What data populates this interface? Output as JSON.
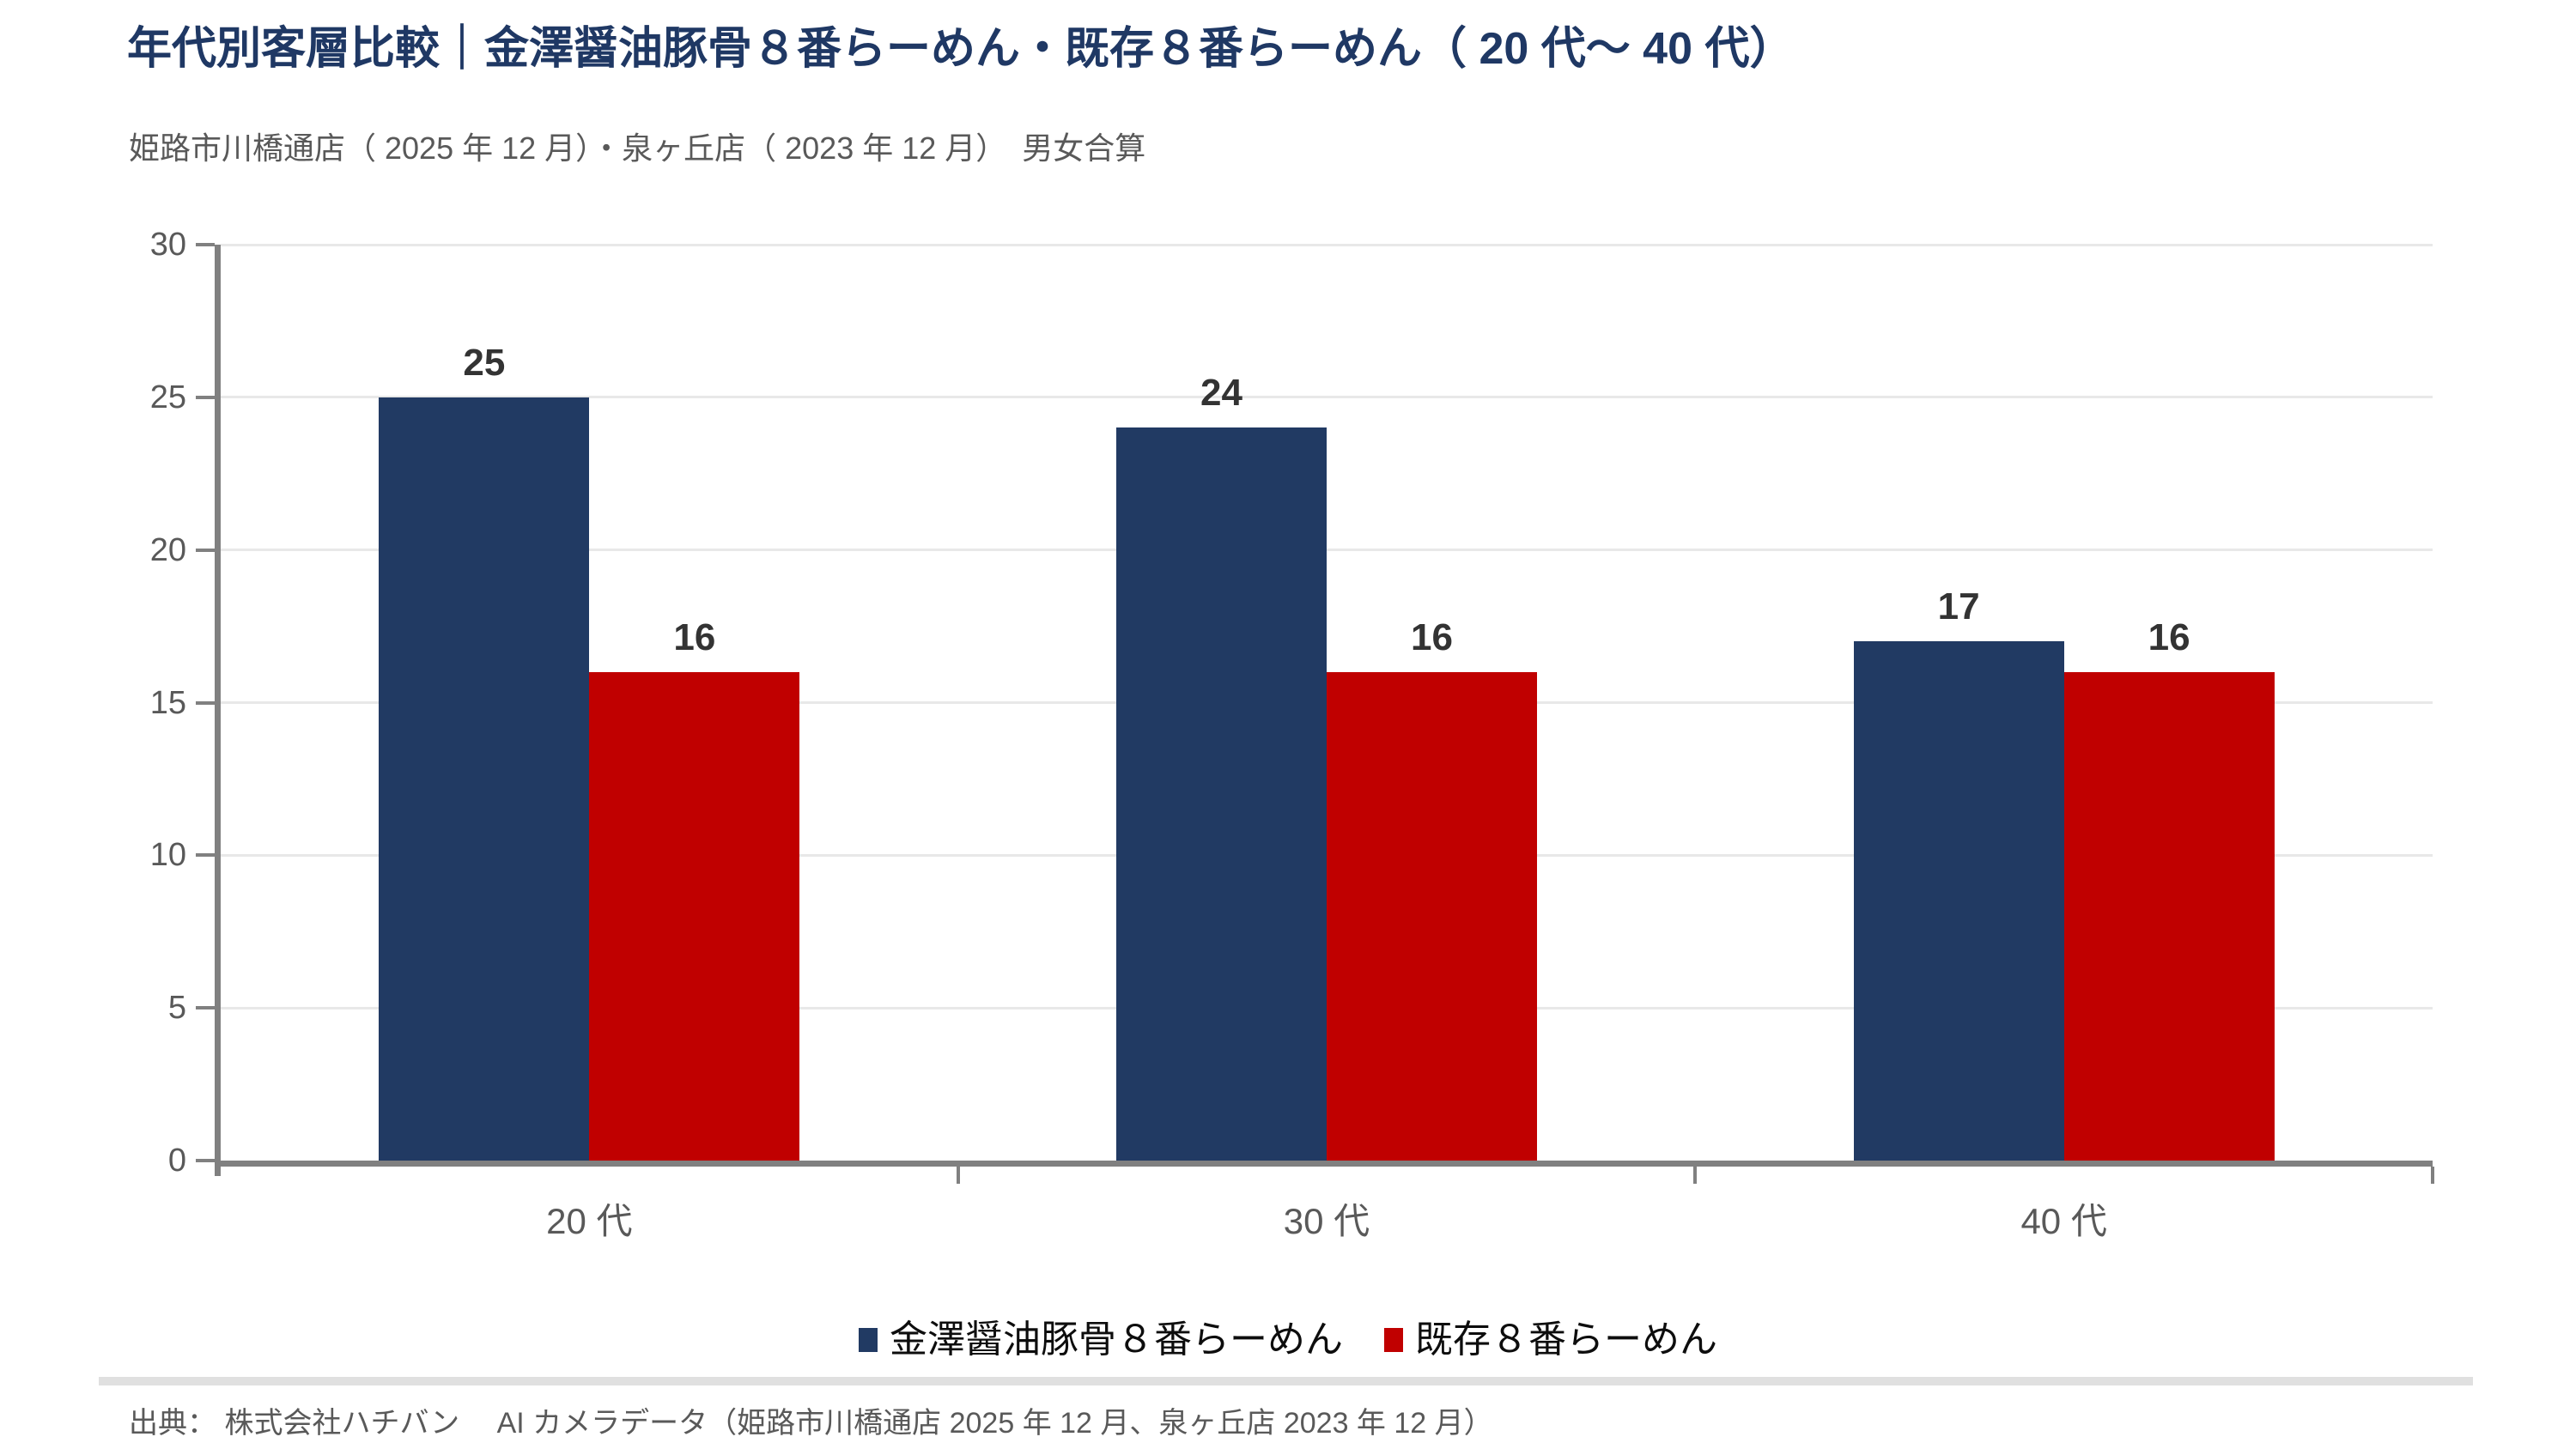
{
  "page": {
    "title": "年代別客層比較｜金澤醤油豚骨８番らーめん・既存８番らーめん（ 20 代〜 40 代）",
    "subtitle": "姫路市川橋通店（ 2025 年 12 月）・泉ヶ丘店（ 2023 年 12 月）　男女合算",
    "source": "出典： 株式会社ハチバン　 AI カメラデータ（姫路市川橋通店 2025 年 12 月、泉ヶ丘店 2023 年 12 月）"
  },
  "colors": {
    "title": "#1F3864",
    "series1": "#213A63",
    "series2": "#C00000",
    "axis": "#808080",
    "grid": "#E8E8E8",
    "tick_label": "#595959",
    "value_label": "#333333",
    "legend_text": "#0d0d0d",
    "divider": "#E0E0E0",
    "background": "#FFFFFF"
  },
  "chart_data": {
    "type": "bar",
    "categories": [
      "20 代",
      "30 代",
      "40 代"
    ],
    "series": [
      {
        "name": "金澤醤油豚骨８番らーめん",
        "color": "#213A63",
        "values": [
          25,
          24,
          17
        ]
      },
      {
        "name": "既存８番らーめん",
        "color": "#C00000",
        "values": [
          16,
          16,
          16
        ]
      }
    ],
    "title": "",
    "xlabel": "",
    "ylabel": "",
    "ylim": [
      0,
      30
    ],
    "yticks": [
      0,
      5,
      10,
      15,
      20,
      25,
      30
    ],
    "grid": true,
    "value_labels": true,
    "legend_position": "bottom"
  }
}
